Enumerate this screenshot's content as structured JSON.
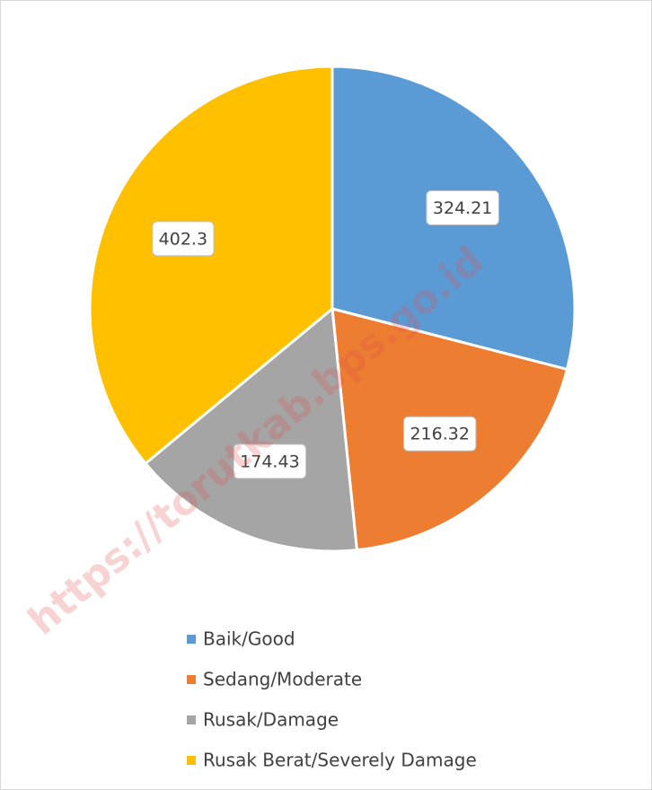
{
  "chart_data": {
    "type": "pie",
    "categories": [
      "Baik/Good",
      "Sedang/Moderate",
      "Rusak/Damage",
      "Rusak Berat/Severely Damage"
    ],
    "values": [
      324.21,
      216.32,
      174.43,
      402.3
    ],
    "colors": [
      "#5b9bd5",
      "#ed7d31",
      "#a5a5a5",
      "#ffc000"
    ],
    "legend": "bottom",
    "watermark": "https://torutkab.bps.go.id"
  }
}
